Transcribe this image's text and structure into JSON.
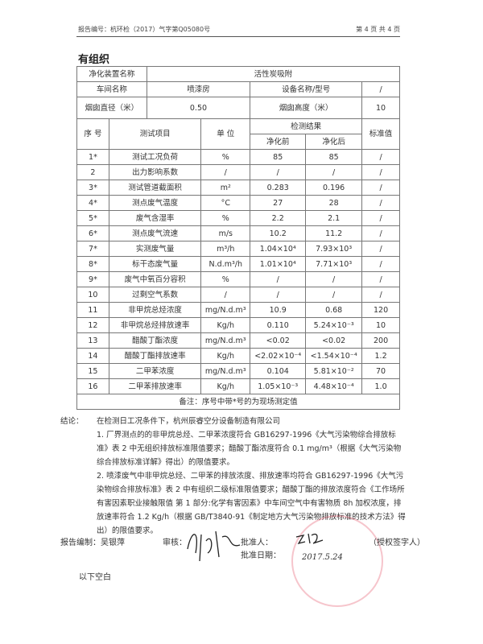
{
  "header": {
    "report_no": "报告编号：杭环检（2017）气字第Q05080号",
    "page": "第 4 页 共 4 页"
  },
  "title": "有组织",
  "info": {
    "device_label": "净化装置名称",
    "device_value": "活性炭吸附",
    "workshop_label": "车间名称",
    "workshop_value": "喷漆房",
    "equipment_label": "设备名称/型号",
    "equipment_value": "/",
    "diameter_label": "烟囱直径（米）",
    "diameter_value": "0.50",
    "height_label": "烟囱高度（米）",
    "height_value": "10"
  },
  "columns": {
    "seq": "序 号",
    "item": "测试项目",
    "unit": "单 位",
    "result": "检测结果",
    "before": "净化前",
    "after": "净化后",
    "standard": "标准值"
  },
  "rows": [
    [
      "1*",
      "测试工况负荷",
      "%",
      "85",
      "85",
      "/"
    ],
    [
      "2",
      "出力影响系数",
      "/",
      "/",
      "/",
      "/"
    ],
    [
      "3*",
      "测试管道截面积",
      "m²",
      "0.283",
      "0.196",
      "/"
    ],
    [
      "4*",
      "测点废气温度",
      "°C",
      "27",
      "28",
      "/"
    ],
    [
      "5*",
      "废气含湿率",
      "%",
      "2.2",
      "2.1",
      "/"
    ],
    [
      "6*",
      "测点废气流速",
      "m/s",
      "10.2",
      "11.2",
      "/"
    ],
    [
      "7*",
      "实测废气量",
      "m³/h",
      "1.04×10⁴",
      "7.93×10³",
      "/"
    ],
    [
      "8*",
      "标干态废气量",
      "N.d.m³/h",
      "1.01×10⁴",
      "7.71×10³",
      "/"
    ],
    [
      "9*",
      "废气中氧百分容积",
      "%",
      "/",
      "/",
      "/"
    ],
    [
      "10",
      "过剩空气系数",
      "/",
      "/",
      "/",
      "/"
    ],
    [
      "11",
      "非甲烷总烃浓度",
      "mg/N.d.m³",
      "10.9",
      "0.68",
      "120"
    ],
    [
      "12",
      "非甲烷总烃排放速率",
      "Kg/h",
      "0.110",
      "5.24×10⁻³",
      "10"
    ],
    [
      "13",
      "醋酸丁酯浓度",
      "mg/N.d.m³",
      "<0.02",
      "<0.02",
      "200"
    ],
    [
      "14",
      "醋酸丁酯排放速率",
      "Kg/h",
      "<2.02×10⁻⁴",
      "<1.54×10⁻⁴",
      "1.2"
    ],
    [
      "15",
      "二甲苯浓度",
      "mg/N.d.m³",
      "0.104",
      "5.81×10⁻²",
      "70"
    ],
    [
      "16",
      "二甲苯排放速率",
      "Kg/h",
      "1.05×10⁻³",
      "4.48×10⁻⁴",
      "1.0"
    ]
  ],
  "note": "备注：序号中带*号的为现场测定值",
  "conclusion": {
    "label": "结论：",
    "intro": "在检测日工况条件下，杭州辰睿空分设备制造有限公司",
    "p1": "1. 厂界测点的的非甲烷总烃、二甲苯浓度符合 GB16297-1996《大气污染物综合排放标准》表 2 中无组织排放标准限值要求；醋酸丁酯浓度符合 0.1 mg/m³（根据《大气污染物综合排放标准详解》得出）的限值要求。",
    "p2": "2. 喷漆废气中非甲烷总烃、二甲苯的排放浓度、排放速率均符合 GB16297-1996《大气污染物综合排放标准》表 2 中有组织二级标准限值要求；醋酸丁酯的排放浓度符合《工作场所有害因素职业接触限值 第 1 部分:化学有害因素》中车间空气中有害物质 8h 加权浓度，排放速率符合 1.2 Kg/h（根据 GB/T3840-91《制定地方大气污染物排放标准的技术方法》得出）的限值要求。"
  },
  "signatures": {
    "author": "报告编制：吴银萍",
    "reviewer": "审核：",
    "approver": "批准人：",
    "authorized": "（授权签字人）",
    "approve_date_label": "批准日期：",
    "approve_date": "2017.5.24"
  },
  "footer": "以下空白"
}
